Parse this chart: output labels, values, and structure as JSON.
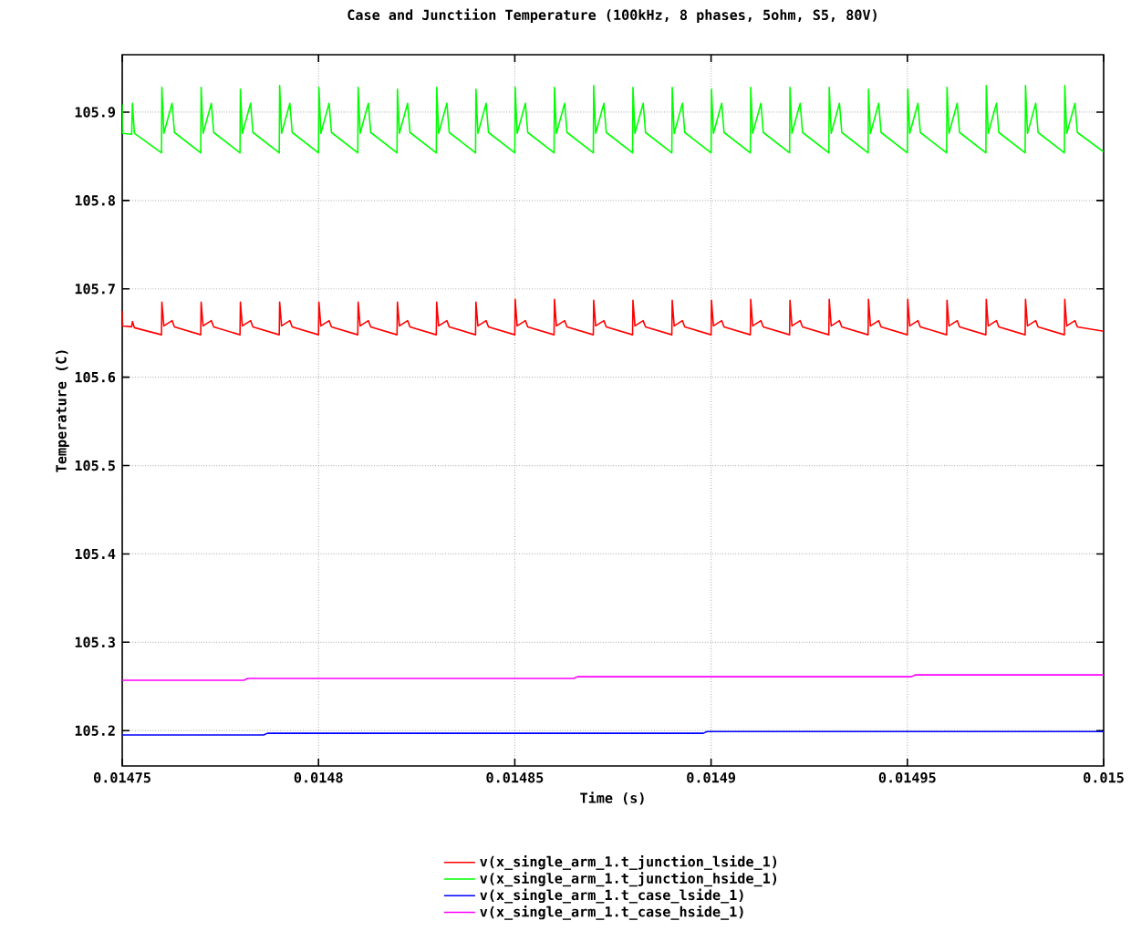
{
  "chart_data": {
    "type": "line",
    "title": "Case and Junctiion Temperature (100kHz, 8 phases, 5ohm, S5, 80V)",
    "xlabel": "Time (s)",
    "ylabel": "Temperature (C)",
    "xlim": [
      0.01475,
      0.015
    ],
    "ylim": [
      105.16,
      105.965
    ],
    "xticks": [
      0.01475,
      0.0148,
      0.01485,
      0.0149,
      0.01495,
      0.015
    ],
    "yticks": [
      105.2,
      105.3,
      105.4,
      105.5,
      105.6,
      105.7,
      105.8,
      105.9
    ],
    "grid": true,
    "legend": "bottom",
    "line_style": "solid",
    "x": [
      0.01475,
      0.0147501,
      0.0147524,
      0.0147526,
      0.0147531,
      0.01476,
      0.0147601,
      0.0147606,
      0.0147627,
      0.0147633,
      0.01477,
      0.0147701,
      0.0147706,
      0.0147727,
      0.0147733,
      0.01478,
      0.0147801,
      0.0147806,
      0.0147827,
      0.0147833,
      0.01479,
      0.0147901,
      0.0147906,
      0.0147927,
      0.0147933,
      0.0148,
      0.0148001,
      0.0148006,
      0.0148027,
      0.0148033,
      0.01481,
      0.0148101,
      0.0148106,
      0.0148127,
      0.0148133,
      0.01482,
      0.0148201,
      0.0148206,
      0.0148227,
      0.0148233,
      0.01483,
      0.0148301,
      0.0148306,
      0.0148327,
      0.0148333,
      0.01484,
      0.0148401,
      0.0148406,
      0.0148427,
      0.0148433,
      0.01485,
      0.0148501,
      0.0148506,
      0.0148527,
      0.0148533,
      0.01486,
      0.0148601,
      0.0148606,
      0.0148627,
      0.0148633,
      0.01487,
      0.0148701,
      0.0148706,
      0.0148727,
      0.0148733,
      0.01488,
      0.0148801,
      0.0148806,
      0.0148827,
      0.0148833,
      0.01489,
      0.0148901,
      0.0148906,
      0.0148927,
      0.0148933,
      0.0149,
      0.0149001,
      0.0149006,
      0.0149027,
      0.0149033,
      0.01491,
      0.0149101,
      0.0149106,
      0.0149127,
      0.0149133,
      0.01492,
      0.0149201,
      0.0149206,
      0.0149227,
      0.0149233,
      0.01493,
      0.0149301,
      0.0149306,
      0.0149327,
      0.0149333,
      0.01494,
      0.0149401,
      0.0149406,
      0.0149427,
      0.0149433,
      0.01495,
      0.0149501,
      0.0149506,
      0.0149527,
      0.0149533,
      0.01496,
      0.0149601,
      0.0149606,
      0.0149627,
      0.0149633,
      0.01497,
      0.0149701,
      0.0149706,
      0.0149727,
      0.0149733,
      0.01498,
      0.0149801,
      0.0149806,
      0.0149827,
      0.0149833,
      0.01499,
      0.0149901,
      0.0149906,
      0.0149927,
      0.0149933,
      0.015
    ],
    "series": [
      {
        "name": "v(x_single_arm_1.t_junction_lside_1)",
        "color": "#ff0000",
        "values": [
          105.675,
          105.658,
          105.657,
          105.663,
          105.656,
          105.648,
          105.685,
          105.658,
          105.664,
          105.657,
          105.648,
          105.685,
          105.658,
          105.664,
          105.657,
          105.648,
          105.685,
          105.658,
          105.664,
          105.657,
          105.648,
          105.685,
          105.658,
          105.664,
          105.657,
          105.648,
          105.685,
          105.658,
          105.664,
          105.657,
          105.648,
          105.685,
          105.658,
          105.664,
          105.657,
          105.648,
          105.685,
          105.658,
          105.664,
          105.657,
          105.648,
          105.685,
          105.658,
          105.664,
          105.657,
          105.648,
          105.685,
          105.658,
          105.664,
          105.657,
          105.648,
          105.688,
          105.658,
          105.664,
          105.657,
          105.648,
          105.688,
          105.658,
          105.664,
          105.657,
          105.648,
          105.687,
          105.658,
          105.664,
          105.657,
          105.648,
          105.687,
          105.658,
          105.664,
          105.657,
          105.648,
          105.687,
          105.658,
          105.664,
          105.657,
          105.648,
          105.687,
          105.658,
          105.664,
          105.657,
          105.648,
          105.688,
          105.658,
          105.664,
          105.657,
          105.648,
          105.687,
          105.658,
          105.664,
          105.657,
          105.648,
          105.688,
          105.658,
          105.664,
          105.657,
          105.648,
          105.688,
          105.658,
          105.664,
          105.657,
          105.648,
          105.688,
          105.658,
          105.664,
          105.657,
          105.648,
          105.687,
          105.658,
          105.664,
          105.657,
          105.648,
          105.688,
          105.658,
          105.664,
          105.657,
          105.648,
          105.688,
          105.658,
          105.664,
          105.657,
          105.648,
          105.688,
          105.658,
          105.664,
          105.657,
          105.652
        ]
      },
      {
        "name": "v(x_single_arm_1.t_junction_hside_1)",
        "color": "#00ff00",
        "values": [
          105.909,
          105.876,
          105.875,
          105.91,
          105.876,
          105.854,
          105.928,
          105.876,
          105.91,
          105.877,
          105.854,
          105.928,
          105.876,
          105.91,
          105.877,
          105.854,
          105.926,
          105.876,
          105.91,
          105.877,
          105.854,
          105.93,
          105.876,
          105.91,
          105.877,
          105.854,
          105.928,
          105.876,
          105.91,
          105.877,
          105.854,
          105.928,
          105.876,
          105.91,
          105.877,
          105.854,
          105.926,
          105.876,
          105.91,
          105.877,
          105.854,
          105.928,
          105.876,
          105.91,
          105.877,
          105.854,
          105.926,
          105.876,
          105.91,
          105.877,
          105.854,
          105.928,
          105.876,
          105.91,
          105.877,
          105.854,
          105.928,
          105.876,
          105.91,
          105.877,
          105.854,
          105.93,
          105.876,
          105.91,
          105.877,
          105.854,
          105.928,
          105.876,
          105.91,
          105.877,
          105.854,
          105.928,
          105.876,
          105.91,
          105.877,
          105.854,
          105.926,
          105.876,
          105.91,
          105.877,
          105.854,
          105.928,
          105.876,
          105.91,
          105.877,
          105.854,
          105.928,
          105.876,
          105.91,
          105.877,
          105.854,
          105.928,
          105.876,
          105.91,
          105.877,
          105.854,
          105.926,
          105.876,
          105.91,
          105.877,
          105.854,
          105.926,
          105.876,
          105.91,
          105.877,
          105.854,
          105.928,
          105.876,
          105.91,
          105.877,
          105.854,
          105.93,
          105.876,
          105.91,
          105.877,
          105.854,
          105.93,
          105.876,
          105.91,
          105.877,
          105.854,
          105.93,
          105.876,
          105.91,
          105.877,
          105.855
        ]
      },
      {
        "name": "v(x_single_arm_1.t_case_lside_1)",
        "color": "#0000ff",
        "x": [
          0.01475,
          0.014786,
          0.014787,
          0.014898,
          0.014899,
          0.015
        ],
        "values": [
          105.195,
          105.195,
          105.197,
          105.197,
          105.199,
          105.199
        ]
      },
      {
        "name": "v(x_single_arm_1.t_case_hside_1)",
        "color": "#ff00ff",
        "x": [
          0.01475,
          0.014781,
          0.014782,
          0.014865,
          0.014866,
          0.014951,
          0.014952,
          0.015
        ],
        "values": [
          105.257,
          105.257,
          105.259,
          105.259,
          105.261,
          105.261,
          105.263,
          105.263
        ]
      }
    ]
  }
}
